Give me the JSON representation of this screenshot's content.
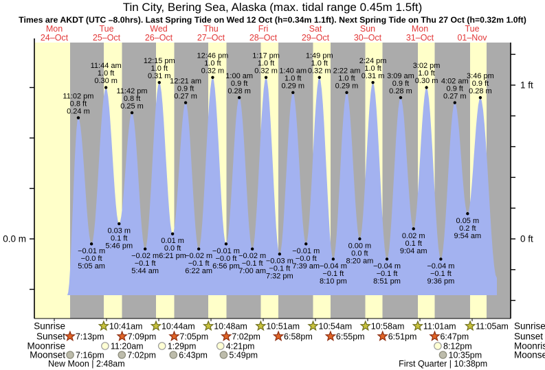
{
  "title": "Tin City, Bering Sea, Alaska (max. tidal range 0.45m 1.5ft)",
  "subtitle": "Times are AKDT (UTC –8.0hrs). Last Spring Tide on Wed 12 Oct (h=0.34m 1.1ft). Next Spring Tide on Thu 27 Oct (h=0.32m 1.0ft)",
  "colors": {
    "day_band": "#ffffc9",
    "night_band": "#ababab",
    "tide_fill": "#a3b2f0",
    "day_label": "#e23737",
    "axis": "#000000",
    "sunrise_star_fill": "#c8c23c",
    "sunrise_star_stroke": "#6e6e1e",
    "sunset_star_fill": "#e06426",
    "sunset_star_stroke": "#8c2e12",
    "moonrise_circle_fill": "#ffffd4",
    "moonrise_circle_stroke": "#9a9a9a",
    "moonset_circle_fill": "#bdbcab",
    "moonset_circle_stroke": "#8a8a7a"
  },
  "chart_data": {
    "type": "area",
    "title": "Tin City, Bering Sea, Alaska (max. tidal range 0.45m 1.5ft)",
    "xlabel": "",
    "ylabel_left": "m",
    "ylabel_right": "ft",
    "ylim_m": [
      -0.16,
      0.39
    ],
    "grid": false,
    "y_axis_left": {
      "unit": "m",
      "labeled_tick": "0.0 m",
      "tick_step_m": 0.1
    },
    "y_axis_right": {
      "unit": "ft",
      "labeled_ticks": [
        "1 ft",
        "0 ft"
      ],
      "tick_step_ft": 0.2
    },
    "days": [
      {
        "name": "Mon",
        "date": "24–Oct"
      },
      {
        "name": "Tue",
        "date": "25–Oct"
      },
      {
        "name": "Wed",
        "date": "26–Oct"
      },
      {
        "name": "Thu",
        "date": "27–Oct"
      },
      {
        "name": "Fri",
        "date": "28–Oct"
      },
      {
        "name": "Sat",
        "date": "29–Oct"
      },
      {
        "name": "Sun",
        "date": "30–Oct"
      },
      {
        "name": "Mon",
        "date": "31–Oct"
      },
      {
        "name": "Tue",
        "date": "01–Nov"
      }
    ],
    "tide_events": [
      {
        "day": 0,
        "time": "11:02 pm",
        "type": "high",
        "value_m": 0.24,
        "label_m": "0.24 m",
        "label_ft": "0.8 ft"
      },
      {
        "day": 1,
        "time": "5:05 am",
        "type": "low",
        "value_m": -0.01,
        "label_m": "−0.01 m",
        "label_ft": "−0.0 ft"
      },
      {
        "day": 1,
        "time": "11:44 am",
        "type": "high",
        "value_m": 0.3,
        "label_m": "0.30 m",
        "label_ft": "1.0 ft"
      },
      {
        "day": 1,
        "time": "5:46 pm",
        "type": "low",
        "value_m": 0.03,
        "label_m": "0.03 m",
        "label_ft": "0.1 ft"
      },
      {
        "day": 1,
        "time": "11:42 pm",
        "type": "high",
        "value_m": 0.25,
        "label_m": "0.25 m",
        "label_ft": "0.8 ft"
      },
      {
        "day": 2,
        "time": "5:44 am",
        "type": "low",
        "value_m": -0.02,
        "label_m": "−0.02 m",
        "label_ft": "−0.1 ft"
      },
      {
        "day": 2,
        "time": "12:15 pm",
        "type": "high",
        "value_m": 0.31,
        "label_m": "0.31 m",
        "label_ft": "1.0 ft"
      },
      {
        "day": 2,
        "time": "6:21 pm",
        "type": "low",
        "value_m": 0.01,
        "label_m": "0.01 m",
        "label_ft": "0.0 ft"
      },
      {
        "day": 3,
        "time": "12:21 am",
        "type": "high",
        "value_m": 0.27,
        "label_m": "0.27 m",
        "label_ft": "0.9 ft"
      },
      {
        "day": 3,
        "time": "6:22 am",
        "type": "low",
        "value_m": -0.02,
        "label_m": "−0.02 m",
        "label_ft": "−0.1 ft"
      },
      {
        "day": 3,
        "time": "12:46 pm",
        "type": "high",
        "value_m": 0.32,
        "label_m": "0.32 m",
        "label_ft": "1.0 ft"
      },
      {
        "day": 3,
        "time": "6:56 pm",
        "type": "low",
        "value_m": -0.01,
        "label_m": "−0.01 m",
        "label_ft": "−0.0 ft"
      },
      {
        "day": 4,
        "time": "1:00 am",
        "type": "high",
        "value_m": 0.28,
        "label_m": "0.28 m",
        "label_ft": "0.9 ft"
      },
      {
        "day": 4,
        "time": "7:00 am",
        "type": "low",
        "value_m": -0.02,
        "label_m": "−0.02 m",
        "label_ft": "−0.1 ft"
      },
      {
        "day": 4,
        "time": "1:17 pm",
        "type": "high",
        "value_m": 0.32,
        "label_m": "0.32 m",
        "label_ft": "1.0 ft"
      },
      {
        "day": 4,
        "time": "7:32 pm",
        "type": "low",
        "value_m": -0.03,
        "label_m": "−0.03 m",
        "label_ft": "−0.1 ft"
      },
      {
        "day": 5,
        "time": "1:40 am",
        "type": "high",
        "value_m": 0.29,
        "label_m": "0.29 m",
        "label_ft": "1.0 ft"
      },
      {
        "day": 5,
        "time": "7:39 am",
        "type": "low",
        "value_m": -0.01,
        "label_m": "−0.01 m",
        "label_ft": "−0.0 ft"
      },
      {
        "day": 5,
        "time": "1:49 pm",
        "type": "high",
        "value_m": 0.32,
        "label_m": "0.32 m",
        "label_ft": "1.0 ft"
      },
      {
        "day": 5,
        "time": "8:10 pm",
        "type": "low",
        "value_m": -0.04,
        "label_m": "−0.04 m",
        "label_ft": "−0.1 ft"
      },
      {
        "day": 6,
        "time": "2:22 am",
        "type": "high",
        "value_m": 0.29,
        "label_m": "0.29 m",
        "label_ft": "1.0 ft"
      },
      {
        "day": 6,
        "time": "8:20 am",
        "type": "low",
        "value_m": 0.0,
        "label_m": "0.00 m",
        "label_ft": "0.0 ft"
      },
      {
        "day": 6,
        "time": "2:24 pm",
        "type": "high",
        "value_m": 0.31,
        "label_m": "0.31 m",
        "label_ft": "1.0 ft"
      },
      {
        "day": 6,
        "time": "8:51 pm",
        "type": "low",
        "value_m": -0.04,
        "label_m": "−0.04 m",
        "label_ft": "−0.1 ft"
      },
      {
        "day": 7,
        "time": "3:09 am",
        "type": "high",
        "value_m": 0.28,
        "label_m": "0.28 m",
        "label_ft": "0.9 ft"
      },
      {
        "day": 7,
        "time": "9:04 am",
        "type": "low",
        "value_m": 0.02,
        "label_m": "0.02 m",
        "label_ft": "0.1 ft"
      },
      {
        "day": 7,
        "time": "3:02 pm",
        "type": "high",
        "value_m": 0.3,
        "label_m": "0.30 m",
        "label_ft": "1.0 ft"
      },
      {
        "day": 7,
        "time": "9:36 pm",
        "type": "low",
        "value_m": -0.04,
        "label_m": "−0.04 m",
        "label_ft": "−0.1 ft"
      },
      {
        "day": 8,
        "time": "4:02 am",
        "type": "high",
        "value_m": 0.27,
        "label_m": "0.27 m",
        "label_ft": "0.9 ft"
      },
      {
        "day": 8,
        "time": "9:54 am",
        "type": "low",
        "value_m": 0.05,
        "label_m": "0.05 m",
        "label_ft": "0.2 ft"
      },
      {
        "day": 8,
        "time": "3:46 pm",
        "type": "high",
        "value_m": 0.28,
        "label_m": "0.28 m",
        "label_ft": "0.9 ft"
      }
    ]
  },
  "almanac": {
    "rows": [
      {
        "label": "Sunrise",
        "icon": "sunrise-star-icon",
        "events": [
          {
            "day": 1,
            "time": "10:41am"
          },
          {
            "day": 2,
            "time": "10:44am"
          },
          {
            "day": 3,
            "time": "10:48am"
          },
          {
            "day": 4,
            "time": "10:51am"
          },
          {
            "day": 5,
            "time": "10:54am"
          },
          {
            "day": 6,
            "time": "10:58am"
          },
          {
            "day": 7,
            "time": "11:01am"
          },
          {
            "day": 8,
            "time": "11:05am"
          }
        ]
      },
      {
        "label": "Sunset",
        "icon": "sunset-star-icon",
        "events": [
          {
            "day": 0,
            "time": "7:13pm"
          },
          {
            "day": 1,
            "time": "7:09pm"
          },
          {
            "day": 2,
            "time": "7:05pm"
          },
          {
            "day": 3,
            "time": "7:02pm"
          },
          {
            "day": 4,
            "time": "6:58pm"
          },
          {
            "day": 5,
            "time": "6:55pm"
          },
          {
            "day": 6,
            "time": "6:51pm"
          },
          {
            "day": 7,
            "time": "6:47pm"
          }
        ]
      },
      {
        "label": "Moonrise",
        "icon": "moonrise-circle-icon",
        "events": [
          {
            "day": 1,
            "time": "11:20am"
          },
          {
            "day": 2,
            "time": "1:29pm"
          },
          {
            "day": 3,
            "time": "4:21pm"
          },
          {
            "day": 7,
            "time": "8:12pm"
          }
        ]
      },
      {
        "label": "Moonset",
        "icon": "moonset-circle-icon",
        "events": [
          {
            "day": 0,
            "time": "7:16pm"
          },
          {
            "day": 1,
            "time": "7:02pm"
          },
          {
            "day": 2,
            "time": "6:43pm"
          },
          {
            "day": 3,
            "time": "5:49pm"
          },
          {
            "day": 7,
            "time": "10:35pm"
          }
        ]
      }
    ],
    "phases": [
      {
        "day": 1,
        "time": "2:48am",
        "label": "New Moon | 2:48am"
      },
      {
        "day": 7,
        "time": "10:38pm",
        "label": "First Quarter | 10:38pm"
      }
    ]
  }
}
